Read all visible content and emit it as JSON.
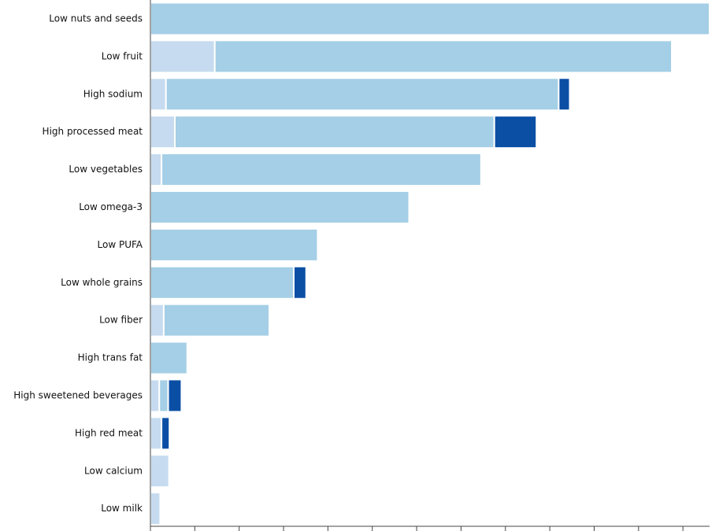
{
  "chart_data": {
    "type": "bar",
    "orientation": "horizontal",
    "stacked": true,
    "categories": [
      "Low nuts and seeds",
      "Low fruit",
      "High sodium",
      "High processed meat",
      "Low vegetables",
      "Low omega-3",
      "Low PUFA",
      "Low whole grains",
      "Low fiber",
      "High trans fat",
      "High sweetened beverages",
      "High red meat",
      "Low calcium",
      "Low milk"
    ],
    "series": [
      {
        "color": "#c6dbef",
        "values": [
          0,
          14.5,
          3.5,
          5.5,
          2.5,
          0,
          0,
          0,
          3,
          0,
          2,
          2.5,
          4.2,
          2.2
        ]
      },
      {
        "color": "#a4cfe6",
        "values": [
          126,
          103,
          88.5,
          72,
          72,
          58.3,
          37.7,
          32.3,
          23.8,
          8.3,
          2,
          0,
          0,
          0
        ]
      },
      {
        "color": "#0b4fa5",
        "values": [
          0,
          0,
          2.5,
          9.5,
          0,
          0,
          0,
          2.8,
          0,
          0,
          3,
          1.8,
          0,
          0
        ]
      }
    ],
    "xlim": [
      0,
      126
    ],
    "x_ticks": [
      0,
      10,
      20,
      30,
      40,
      50,
      60,
      70,
      80,
      90,
      100,
      110,
      120
    ],
    "x_tick_labels_visible": false,
    "grid": false,
    "legend": "none"
  }
}
